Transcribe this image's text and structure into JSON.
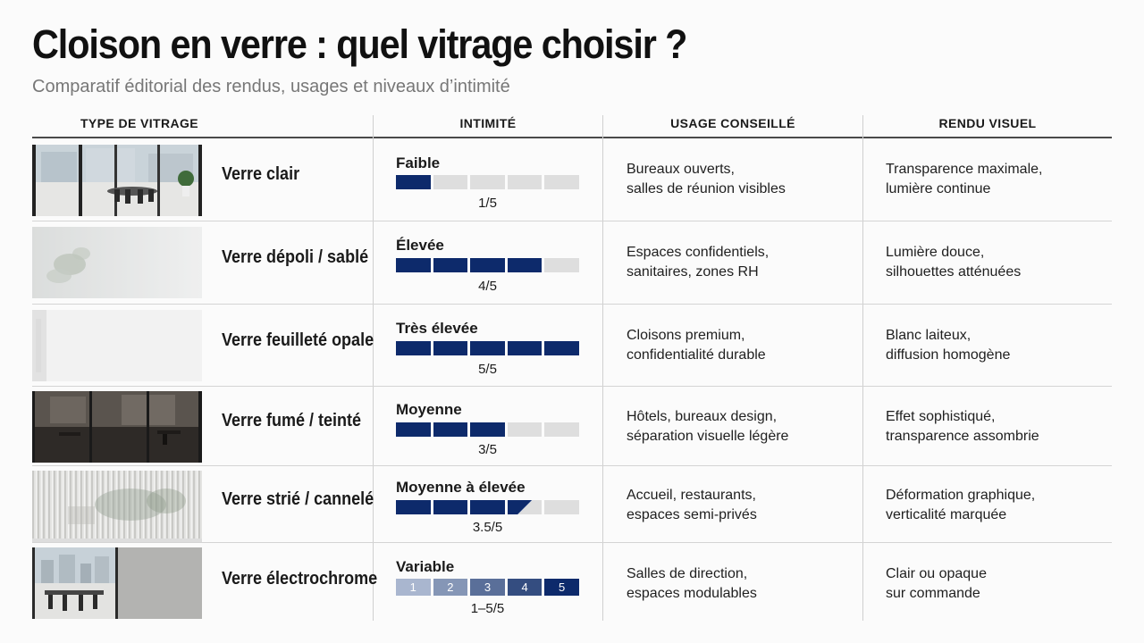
{
  "title": "Cloison en verre : quel vitrage choisir ?",
  "subtitle": "Comparatif éditorial des rendus, usages et niveaux d’intimité",
  "headers": {
    "type": "TYPE DE VITRAGE",
    "intimite": "INTIMITÉ",
    "usage": "USAGE CONSEILLÉ",
    "rendu": "RENDU VISUEL"
  },
  "colors": {
    "accent": "#0d2a6b",
    "empty": "#dedede"
  },
  "rows": [
    {
      "name": "Verre clair",
      "thumb": "clear-office-photo",
      "level_label": "Faible",
      "level": 1,
      "score": "1/5",
      "usage_1": "Bureaux ouverts,",
      "usage_2": "salles de réunion visibles",
      "rendu_1": "Transparence maximale,",
      "rendu_2": "lumière continue"
    },
    {
      "name": "Verre dépoli / sablé",
      "thumb": "frosted-glass-plant-photo",
      "level_label": "Élevée",
      "level": 4,
      "score": "4/5",
      "usage_1": "Espaces confidentiels,",
      "usage_2": "sanitaires, zones RH",
      "rendu_1": "Lumière douce,",
      "rendu_2": "silhouettes atténuées"
    },
    {
      "name": "Verre feuilleté opale",
      "thumb": "opal-glass-photo",
      "level_label": "Très élevée",
      "level": 5,
      "score": "5/5",
      "usage_1": "Cloisons premium,",
      "usage_2": "confidentialité durable",
      "rendu_1": "Blanc laiteux,",
      "rendu_2": "diffusion homogène"
    },
    {
      "name": "Verre fumé / teinté",
      "thumb": "tinted-glass-office-photo",
      "level_label": "Moyenne",
      "level": 3,
      "score": "3/5",
      "usage_1": "Hôtels, bureaux design,",
      "usage_2": "séparation visuelle légère",
      "rendu_1": "Effet sophistiqué,",
      "rendu_2": "transparence assombrie"
    },
    {
      "name": "Verre strié / cannelé",
      "thumb": "fluted-glass-photo",
      "level_label": "Moyenne à élevée",
      "level": 3.5,
      "score": "3.5/5",
      "usage_1": "Accueil, restaurants,",
      "usage_2": "espaces semi-privés",
      "rendu_1": "Déformation graphique,",
      "rendu_2": "verticalité marquée"
    },
    {
      "name": "Verre électrochrome",
      "thumb": "electrochromic-glass-photo",
      "level_label": "Variable",
      "level": "variable",
      "score": "1–5/5",
      "scale": [
        "1",
        "2",
        "3",
        "4",
        "5"
      ],
      "usage_1": "Salles de direction,",
      "usage_2": "espaces modulables",
      "rendu_1": "Clair ou opaque",
      "rendu_2": "sur commande"
    }
  ]
}
